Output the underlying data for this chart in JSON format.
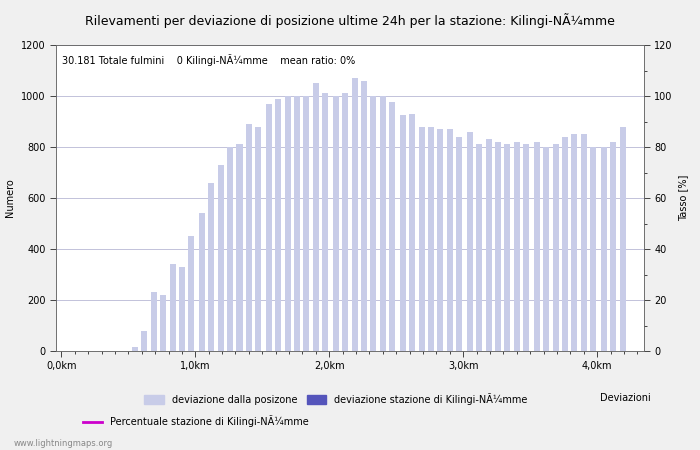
{
  "title": "Rilevamenti per deviazione di posizione ultime 24h per la stazione: Kilingi-NÃ¼mme",
  "subtitle": "30.181 Totale fulmini    0 Kilingi-NÃ¼mme    mean ratio: 0%",
  "ylabel_left": "Numero",
  "ylabel_right": "Tasso [%]",
  "xlabel": "Deviazioni",
  "bar_color": "#c8cce8",
  "bar_color_station": "#5555bb",
  "line_color": "#cc00cc",
  "watermark": "www.lightningmaps.org",
  "legend_label1": "deviazione dalla posizone",
  "legend_label2": "deviazione stazione di Kilingi-NÃ¼mme",
  "legend_label3": "Percentuale stazione di Kilingi-NÃ¼mme",
  "ylim_left": [
    0,
    1200
  ],
  "ylim_right": [
    0,
    120
  ],
  "bar_width": 0.045,
  "x_tick_labels": [
    "0,0km",
    "1,0km",
    "2,0km",
    "3,0km",
    "4,0km"
  ],
  "x_tick_positions": [
    0.0,
    1.0,
    2.0,
    3.0,
    4.0
  ],
  "bar_values": [
    0,
    0,
    0,
    0,
    0,
    0,
    0,
    15,
    80,
    230,
    220,
    340,
    330,
    450,
    540,
    660,
    730,
    800,
    810,
    890,
    880,
    970,
    990,
    1000,
    1000,
    1000,
    1050,
    1010,
    1000,
    1010,
    1070,
    1060,
    1000,
    1000,
    975,
    925,
    930,
    880,
    880,
    870,
    870,
    840,
    860,
    810,
    830,
    820,
    810,
    820,
    810,
    820,
    800,
    810,
    840,
    850,
    850,
    800,
    800,
    820,
    880
  ],
  "bar_positions_km": [
    0.05,
    0.12,
    0.19,
    0.26,
    0.33,
    0.4,
    0.47,
    0.55,
    0.62,
    0.69,
    0.76,
    0.83,
    0.9,
    0.97,
    1.05,
    1.12,
    1.19,
    1.26,
    1.33,
    1.4,
    1.47,
    1.55,
    1.62,
    1.69,
    1.76,
    1.83,
    1.9,
    1.97,
    2.05,
    2.12,
    2.19,
    2.26,
    2.33,
    2.4,
    2.47,
    2.55,
    2.62,
    2.69,
    2.76,
    2.83,
    2.9,
    2.97,
    3.05,
    3.12,
    3.19,
    3.26,
    3.33,
    3.4,
    3.47,
    3.55,
    3.62,
    3.69,
    3.76,
    3.83,
    3.9,
    3.97,
    4.05,
    4.12,
    4.19
  ],
  "background_color": "#f0f0f0",
  "plot_bg_color": "#ffffff",
  "grid_color": "#aaaacc",
  "title_fontsize": 9,
  "subtitle_fontsize": 7,
  "axis_fontsize": 7,
  "tick_fontsize": 7,
  "legend_fontsize": 7
}
